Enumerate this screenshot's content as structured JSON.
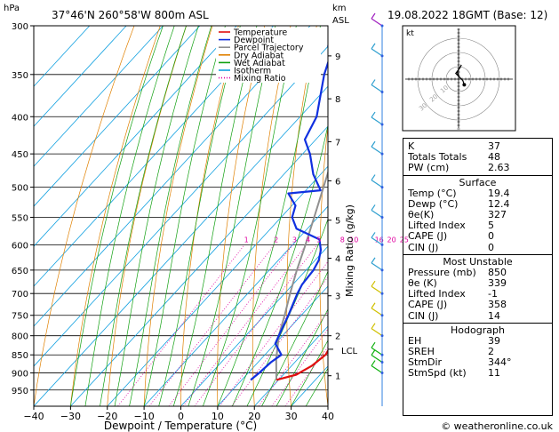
{
  "header": {
    "location": "37°46'N  260°58'W  800m  ASL",
    "datetime": "19.08.2022  18GMT  (Base: 12)"
  },
  "footer": {
    "credit": "© weatheronline.co.uk"
  },
  "skewt": {
    "y_unit": "hPa",
    "xlabel": "Dewpoint / Temperature (°C)",
    "right_unit_line1": "km",
    "right_unit_line2": "ASL",
    "mixing_ratio_label": "Mixing Ratio (g/kg)",
    "lcl_label": "LCL",
    "legend": [
      {
        "name": "Temperature",
        "color": "#e01010",
        "style": "solid"
      },
      {
        "name": "Dewpoint",
        "color": "#1030e0",
        "style": "solid"
      },
      {
        "name": "Parcel Trajectory",
        "color": "#909090",
        "style": "solid"
      },
      {
        "name": "Dry Adiabat",
        "color": "#e08000",
        "style": "solid"
      },
      {
        "name": "Wet Adiabat",
        "color": "#10a010",
        "style": "solid"
      },
      {
        "name": "Isotherm",
        "color": "#10a0e0",
        "style": "solid"
      },
      {
        "name": "Mixing Ratio",
        "color": "#e000a0",
        "style": "dotted"
      }
    ]
  },
  "chart_data": {
    "type": "line",
    "title": "",
    "xlabel": "Dewpoint / Temperature (°C)",
    "ylabel": "hPa",
    "xlim": [
      -40,
      40
    ],
    "ylim": [
      300,
      1000
    ],
    "x_ticks": [
      -40,
      -30,
      -20,
      -10,
      0,
      10,
      20,
      30,
      40
    ],
    "y_ticks": [
      300,
      350,
      400,
      450,
      500,
      550,
      600,
      650,
      700,
      750,
      800,
      850,
      900,
      950
    ],
    "km_ticks": [
      {
        "label": "1",
        "p": 908
      },
      {
        "label": "2",
        "p": 800
      },
      {
        "label": "3",
        "p": 705
      },
      {
        "label": "4",
        "p": 626
      },
      {
        "label": "5",
        "p": 555
      },
      {
        "label": "6",
        "p": 490
      },
      {
        "label": "7",
        "p": 433
      },
      {
        "label": "8",
        "p": 378
      },
      {
        "label": "9",
        "p": 330
      }
    ],
    "mixing_ratio_labels": [
      "1",
      "2",
      "3",
      "4",
      "5",
      "8",
      "10",
      "16",
      "20",
      "25"
    ],
    "lcl_pressure": 835,
    "series": [
      {
        "name": "Temperature",
        "color": "#e01010",
        "points": [
          [
            920,
            19.4
          ],
          [
            905,
            23.5
          ],
          [
            880,
            25.5
          ],
          [
            850,
            26.5
          ],
          [
            820,
            25.5
          ],
          [
            800,
            23.5
          ],
          [
            750,
            18.5
          ],
          [
            700,
            13.5
          ],
          [
            650,
            9.0
          ],
          [
            600,
            4.0
          ],
          [
            550,
            0.0
          ],
          [
            500,
            -4.5
          ],
          [
            450,
            -10.0
          ],
          [
            400,
            -16.5
          ],
          [
            350,
            -24.0
          ],
          [
            320,
            -29.0
          ],
          [
            300,
            -33.0
          ]
        ]
      },
      {
        "name": "Dewpoint",
        "color": "#1030e0",
        "points": [
          [
            920,
            12.4
          ],
          [
            900,
            13.0
          ],
          [
            870,
            13.5
          ],
          [
            850,
            14.5
          ],
          [
            820,
            10.0
          ],
          [
            800,
            9.0
          ],
          [
            750,
            6.5
          ],
          [
            700,
            3.5
          ],
          [
            680,
            2.5
          ],
          [
            650,
            2.0
          ],
          [
            630,
            1.0
          ],
          [
            610,
            -1.0
          ],
          [
            590,
            -4.0
          ],
          [
            570,
            -13.0
          ],
          [
            550,
            -17.0
          ],
          [
            530,
            -19.0
          ],
          [
            510,
            -24.0
          ],
          [
            505,
            -16.0
          ],
          [
            480,
            -22.0
          ],
          [
            450,
            -28.0
          ],
          [
            430,
            -33.0
          ],
          [
            400,
            -35.5
          ],
          [
            350,
            -44.0
          ],
          [
            330,
            -47.0
          ],
          [
            320,
            -50.0
          ],
          [
            310,
            -52.0
          ],
          [
            300,
            -40.0
          ]
        ]
      },
      {
        "name": "Parcel Trajectory",
        "color": "#909090",
        "points": [
          [
            920,
            19.4
          ],
          [
            860,
            14.0
          ],
          [
            835,
            12.0
          ],
          [
            800,
            9.0
          ],
          [
            750,
            5.5
          ],
          [
            700,
            1.5
          ],
          [
            650,
            -2.5
          ],
          [
            600,
            -6.5
          ],
          [
            550,
            -11.0
          ],
          [
            500,
            -16.0
          ],
          [
            450,
            -21.5
          ],
          [
            400,
            -27.0
          ],
          [
            350,
            -34.0
          ],
          [
            300,
            -41.0
          ]
        ]
      }
    ]
  },
  "hodograph": {
    "unit": "kt",
    "ring_labels": [
      "10",
      "20",
      "30"
    ],
    "points": [
      [
        0,
        2
      ],
      [
        -1,
        5
      ],
      [
        2,
        10
      ],
      [
        1,
        8
      ],
      [
        -2,
        4
      ],
      [
        3,
        -1
      ],
      [
        4,
        -4
      ]
    ]
  },
  "indices": {
    "top": [
      {
        "label": "K",
        "value": "37"
      },
      {
        "label": "Totals Totals",
        "value": "48"
      },
      {
        "label": "PW (cm)",
        "value": "2.63"
      }
    ],
    "surface": {
      "header": "Surface",
      "rows": [
        {
          "label": "Temp (°C)",
          "value": "19.4"
        },
        {
          "label": "Dewp (°C)",
          "value": "12.4"
        },
        {
          "label": "θe(K)",
          "value": "327"
        },
        {
          "label": "Lifted Index",
          "value": "5"
        },
        {
          "label": "CAPE (J)",
          "value": "0"
        },
        {
          "label": "CIN (J)",
          "value": "0"
        }
      ]
    },
    "most_unstable": {
      "header": "Most Unstable",
      "rows": [
        {
          "label": "Pressure (mb)",
          "value": "850"
        },
        {
          "label": "θe (K)",
          "value": "339"
        },
        {
          "label": "Lifted Index",
          "value": "-1"
        },
        {
          "label": "CAPE (J)",
          "value": "358"
        },
        {
          "label": "CIN (J)",
          "value": "14"
        }
      ]
    },
    "hodograph": {
      "header": "Hodograph",
      "rows": [
        {
          "label": "EH",
          "value": "39"
        },
        {
          "label": "SREH",
          "value": "2"
        },
        {
          "label": "StmDir",
          "value": "344°"
        },
        {
          "label": "StmSpd (kt)",
          "value": "11"
        }
      ]
    }
  }
}
